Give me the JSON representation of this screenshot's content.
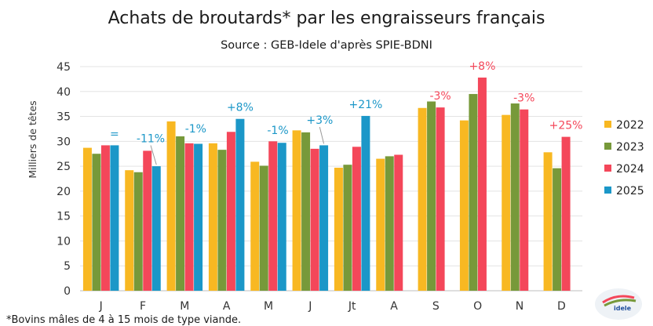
{
  "chart_data": {
    "type": "bar",
    "title": "Achats de broutards* par les engraisseurs français",
    "subtitle": "Source : GEB-Idele d'après SPIE-BDNI",
    "ylabel": "Milliers de têtes",
    "xlabel": "",
    "ylim": [
      0,
      45
    ],
    "yticks": [
      0,
      5,
      10,
      15,
      20,
      25,
      30,
      35,
      40,
      45
    ],
    "grid": true,
    "legend_position": "right",
    "categories": [
      "J",
      "F",
      "M",
      "A",
      "M",
      "J",
      "Jt",
      "A",
      "S",
      "O",
      "N",
      "D"
    ],
    "series": [
      {
        "name": "2022",
        "color": "#f8b822",
        "values": [
          28.7,
          24.2,
          34.0,
          29.6,
          25.9,
          32.2,
          24.7,
          26.5,
          36.7,
          34.2,
          35.3,
          27.8
        ]
      },
      {
        "name": "2023",
        "color": "#77993a",
        "values": [
          27.5,
          23.8,
          31.0,
          28.3,
          25.1,
          31.8,
          25.3,
          27.0,
          38.0,
          39.5,
          37.6,
          24.6
        ]
      },
      {
        "name": "2024",
        "color": "#f4475a",
        "values": [
          29.2,
          28.1,
          29.6,
          31.9,
          30.0,
          28.5,
          28.9,
          27.3,
          36.8,
          42.8,
          36.4,
          30.9
        ]
      },
      {
        "name": "2025",
        "color": "#1b97c8",
        "values": [
          29.2,
          25.0,
          29.5,
          34.5,
          29.7,
          29.2,
          35.1,
          null,
          null,
          null,
          null,
          null
        ]
      }
    ],
    "annotations": [
      {
        "month_index": 0,
        "text": "=",
        "color": "#1b97c8"
      },
      {
        "month_index": 1,
        "text": "-11%",
        "color": "#1b97c8"
      },
      {
        "month_index": 2,
        "text": "-1%",
        "color": "#1b97c8"
      },
      {
        "month_index": 3,
        "text": "+8%",
        "color": "#1b97c8"
      },
      {
        "month_index": 4,
        "text": "-1%",
        "color": "#1b97c8"
      },
      {
        "month_index": 5,
        "text": "+3%",
        "color": "#1b97c8"
      },
      {
        "month_index": 6,
        "text": "+21%",
        "color": "#1b97c8"
      },
      {
        "month_index": 8,
        "text": "-3%",
        "color": "#f4475a"
      },
      {
        "month_index": 9,
        "text": "+8%",
        "color": "#f4475a"
      },
      {
        "month_index": 10,
        "text": "-3%",
        "color": "#f4475a"
      },
      {
        "month_index": 11,
        "text": "+25%",
        "color": "#f4475a"
      }
    ],
    "footnote": "*Bovins mâles de 4 à 15 mois de type viande."
  },
  "logo": {
    "name": "Institut de l'Élevage idele logo",
    "text": "idele"
  }
}
